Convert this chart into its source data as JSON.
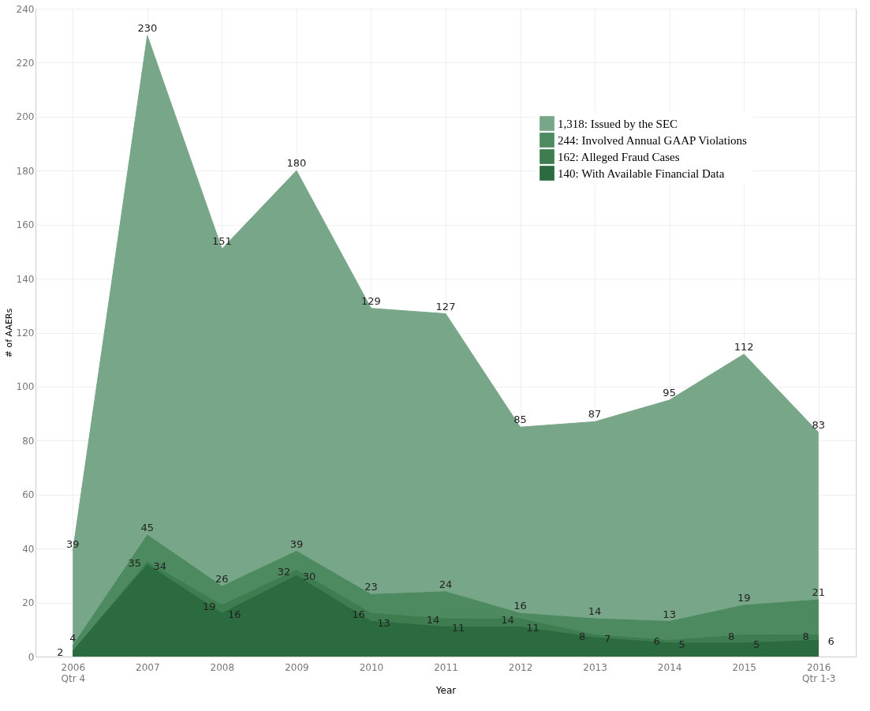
{
  "chart_data": {
    "type": "area",
    "xlabel": "Year",
    "ylabel": "# of AAERs",
    "categories": [
      "2006\nQtr 4",
      "2007",
      "2008",
      "2009",
      "2010",
      "2011",
      "2012",
      "2013",
      "2014",
      "2015",
      "2016\nQtr 1-3"
    ],
    "series": [
      {
        "name": "1,318: Issued by the SEC",
        "color": "#78a688",
        "values": [
          39,
          230,
          151,
          180,
          129,
          127,
          85,
          87,
          95,
          112,
          83
        ],
        "value_labels": [
          "39",
          "230",
          "151",
          "180",
          "129",
          "127",
          "85",
          "87",
          "95",
          "112",
          "83"
        ]
      },
      {
        "name": "244: Involved Annual GAAP Violations",
        "color": "#4e8a5f",
        "values": [
          4,
          45,
          26,
          39,
          23,
          24,
          16,
          14,
          13,
          19,
          21
        ],
        "value_labels": [
          "4",
          "45",
          "26",
          "39",
          "23",
          "24",
          "16",
          "14",
          "13",
          "19",
          "21"
        ]
      },
      {
        "name": "162: Alleged Fraud Cases",
        "color": "#3d7d50",
        "values": [
          2,
          35,
          19,
          32,
          16,
          14,
          14,
          8,
          6,
          8,
          8
        ],
        "value_labels": [
          "2",
          "35",
          "19",
          "32",
          "16",
          "14",
          "14",
          "8",
          "6",
          "8",
          "8"
        ]
      },
      {
        "name": "140: With Available Financial Data",
        "color": "#2b6b3f",
        "values": [
          2,
          34,
          16,
          30,
          13,
          11,
          11,
          7,
          5,
          5,
          6
        ],
        "value_labels": [
          null,
          "34",
          "16",
          "30",
          "13",
          "11",
          "11",
          "7",
          "5",
          "5",
          "6"
        ]
      }
    ],
    "ylim": [
      0,
      240
    ],
    "yticks": [
      0,
      20,
      40,
      60,
      80,
      100,
      120,
      140,
      160,
      180,
      200,
      220,
      240
    ],
    "grid": true,
    "legend": "top right"
  }
}
